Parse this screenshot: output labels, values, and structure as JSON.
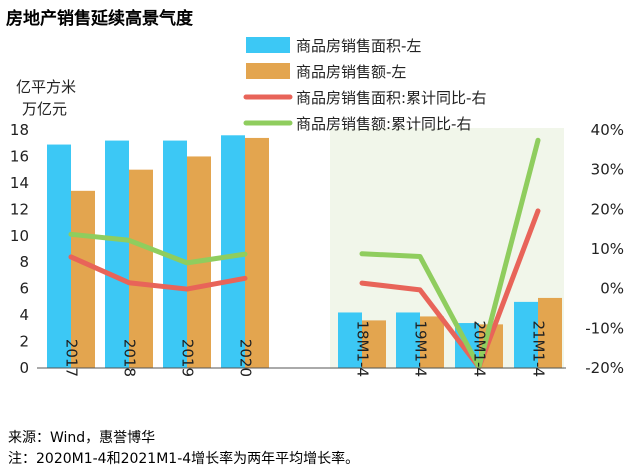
{
  "chart_data": {
    "type": "bar",
    "title": "房地产销售延续高景气度",
    "ylabel_left_line1": "亿平方米",
    "ylabel_left_line2": "万亿元",
    "categories": [
      "2017",
      "2018",
      "2019",
      "2020",
      "18M1-4",
      "19M1-4",
      "20M1-4",
      "21M1-4"
    ],
    "bar_series": [
      {
        "name": "商品房销售面积-左",
        "color": "#3cc8f5",
        "values": [
          16.9,
          17.2,
          17.2,
          17.6,
          4.2,
          4.2,
          3.4,
          5.0
        ]
      },
      {
        "name": "商品房销售额-左",
        "color": "#e3a54f",
        "values": [
          13.4,
          15.0,
          16.0,
          17.4,
          3.6,
          3.9,
          3.3,
          5.3
        ]
      }
    ],
    "line_series": [
      {
        "name": "商品房销售面积:累计同比-右",
        "color": "#e86459",
        "segments": [
          [
            0.08,
            0.015,
            -0.001,
            0.026
          ],
          [
            0.014,
            -0.003,
            -0.198,
            0.196
          ]
        ]
      },
      {
        "name": "商品房销售额:累计同比-右",
        "color": "#8fcd5e",
        "segments": [
          [
            0.137,
            0.122,
            0.065,
            0.087
          ],
          [
            0.088,
            0.081,
            -0.197,
            0.374
          ]
        ]
      }
    ],
    "y_left": {
      "min": 0,
      "max": 18,
      "ticks": [
        "0",
        "2",
        "4",
        "6",
        "8",
        "10",
        "12",
        "14",
        "16",
        "18"
      ]
    },
    "y_right": {
      "min": -0.2,
      "max": 0.4,
      "ticks": [
        "-20%",
        "-10%",
        "0%",
        "10%",
        "20%",
        "30%",
        "40%"
      ]
    },
    "grid": false,
    "legend_position": "top-right",
    "highlight_color": "#f1f6ea"
  },
  "notes": {
    "source": "来源：Wind，惠誉博华",
    "footnote": "注：2020M1-4和2021M1-4增长率为两年平均增长率。"
  }
}
